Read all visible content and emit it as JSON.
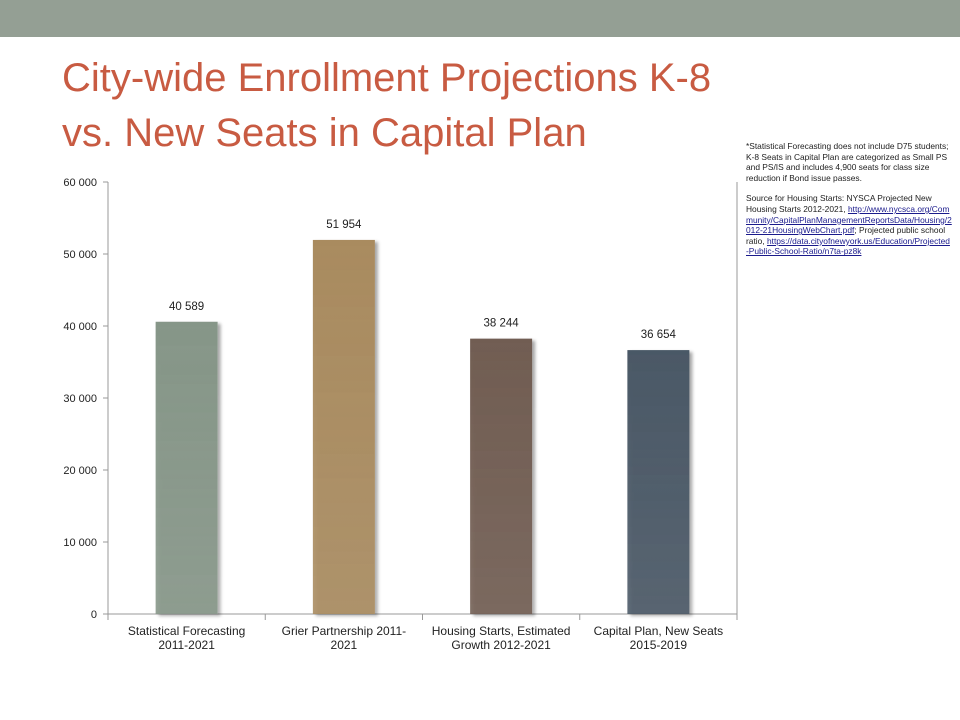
{
  "slide": {
    "title": "City-wide Enrollment Projections K-8 vs. New Seats in Capital Plan",
    "footnote_note": "*Statistical Forecasting does not include D75 students; K-8 Seats in Capital Plan are categorized as Small PS and PS/IS and includes 4,900 seats for class size reduction if Bond issue passes.",
    "source_intro": "Source for Housing Starts: NYSCA Projected New Housing Starts 2012-2021, ",
    "source_link_1": "http://www.nycsca.org/Community/CapitalPlanManagementReportsData/Housing/2012-21HousingWebChart.pdf",
    "source_mid": "; Projected public school ratio, ",
    "source_link_2": "https://data.cityofnewyork.us/Education/Projected-Public-School-Ratio/n7ta-pz8k"
  },
  "colors": {
    "top_band": "#949f94",
    "title": "#c85b42",
    "bar_1": "#869688",
    "bar_2": "#a98b5f",
    "bar_3": "#715d52",
    "bar_4": "#4a5866",
    "axis": "#999999"
  },
  "chart_data": {
    "type": "bar",
    "categories": [
      "Statistical Forecasting 2011-2021",
      "Grier Partnership 2011-2021",
      "Housing Starts, Estimated Growth 2012-2021",
      "Capital Plan, New Seats 2015-2019"
    ],
    "category_lines": [
      [
        "Statistical Forecasting",
        "2011-2021"
      ],
      [
        "Grier Partnership 2011-",
        "2021"
      ],
      [
        "Housing Starts, Estimated",
        "Growth 2012-2021"
      ],
      [
        "Capital Plan, New Seats",
        "2015-2019"
      ]
    ],
    "values": [
      40589,
      51954,
      38244,
      36654
    ],
    "value_labels": [
      "40 589",
      "51 954",
      "38 244",
      "36 654"
    ],
    "ylim": [
      0,
      60000
    ],
    "yticks": [
      0,
      10000,
      20000,
      30000,
      40000,
      50000,
      60000
    ],
    "ytick_labels": [
      "0",
      "10 000",
      "20 000",
      "30 000",
      "40 000",
      "50 000",
      "60 000"
    ],
    "grid": false,
    "legend": "none"
  }
}
